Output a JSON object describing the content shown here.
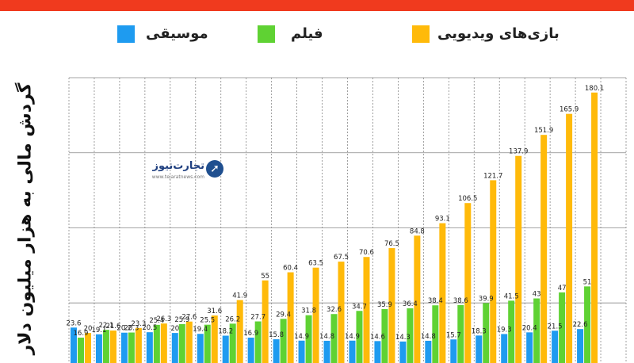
{
  "colors": {
    "topbar": "#f03a1e",
    "music": "#1e9bf0",
    "film": "#5fd233",
    "games": "#ffba0a",
    "grid": "#888888"
  },
  "legend": {
    "music_label": "موسیقی",
    "film_label": "فیلم",
    "games_label": "بازی‌های ویدیویی"
  },
  "logo": {
    "icon_name": "tejaratnews-logo-icon",
    "text": "تجارت‌نیوز",
    "sub": "www.tejaratnews.com"
  },
  "chart_data": {
    "type": "bar",
    "ylabel": "گردش مالی به هزار میلیون دلار",
    "ylim": [
      0,
      190
    ],
    "categories": [
      "",
      "",
      "",
      "",
      "",
      "",
      "",
      "",
      "",
      "",
      "",
      "",
      "",
      "",
      "",
      "",
      "",
      "",
      "",
      "",
      "",
      ""
    ],
    "series": [
      {
        "name": "موسیقی",
        "values": [
          23.6,
          19.1,
          20.2,
          20.5,
          20,
          19.4,
          18.2,
          16.9,
          15.8,
          14.9,
          14.8,
          14.9,
          14.6,
          14.3,
          14.8,
          15.7,
          18.3,
          19.3,
          20.4,
          21.5,
          22.6,
          null
        ],
        "labels": [
          "23.6",
          "19.1",
          "20.2",
          "20.5",
          "20",
          "19.4",
          "18.2",
          "16.9",
          "15.8",
          "14.9",
          "14.8",
          "14.9",
          "14.6",
          "14.3",
          "14.8",
          "15.7",
          "18.3",
          "19.3",
          "20.4",
          "21.5",
          "22.6",
          ""
        ]
      },
      {
        "name": "فیلم",
        "values": [
          16.9,
          22.1,
          20.3,
          25.4,
          25.9,
          25.5,
          26.2,
          27.7,
          29.4,
          31.8,
          32.6,
          34.7,
          35.9,
          36.4,
          38.4,
          38.6,
          39.9,
          41.5,
          43,
          47,
          51,
          null
        ],
        "labels": [
          "16.9",
          "22.1",
          "20.3",
          "25.4",
          "25.9",
          "25.5",
          "26.2",
          "27.7",
          "29.4",
          "31.8",
          "32.6",
          "34.7",
          "35.9",
          "36.4",
          "38.4",
          "38.6",
          "39.9",
          "41.5",
          "43",
          "47",
          "51",
          ""
        ]
      },
      {
        "name": "بازی‌های ویدیویی",
        "values": [
          20,
          21.6,
          23.3,
          26.3,
          27.6,
          31.6,
          41.9,
          55,
          60.4,
          63.5,
          67.5,
          70.6,
          76.5,
          84.8,
          93.1,
          106.5,
          121.7,
          137.9,
          151.9,
          165.9,
          180.1,
          null
        ],
        "labels": [
          "20",
          "21.6",
          "23.3",
          "26.3",
          "27.6",
          "31.6",
          "41.9",
          "55",
          "60.4",
          "63.5",
          "67.5",
          "70.6",
          "76.5",
          "84.8",
          "93.1",
          "106.5",
          "121.7",
          "137.9",
          "151.9",
          "165.9",
          "180.1",
          ""
        ]
      }
    ],
    "grid": true
  }
}
